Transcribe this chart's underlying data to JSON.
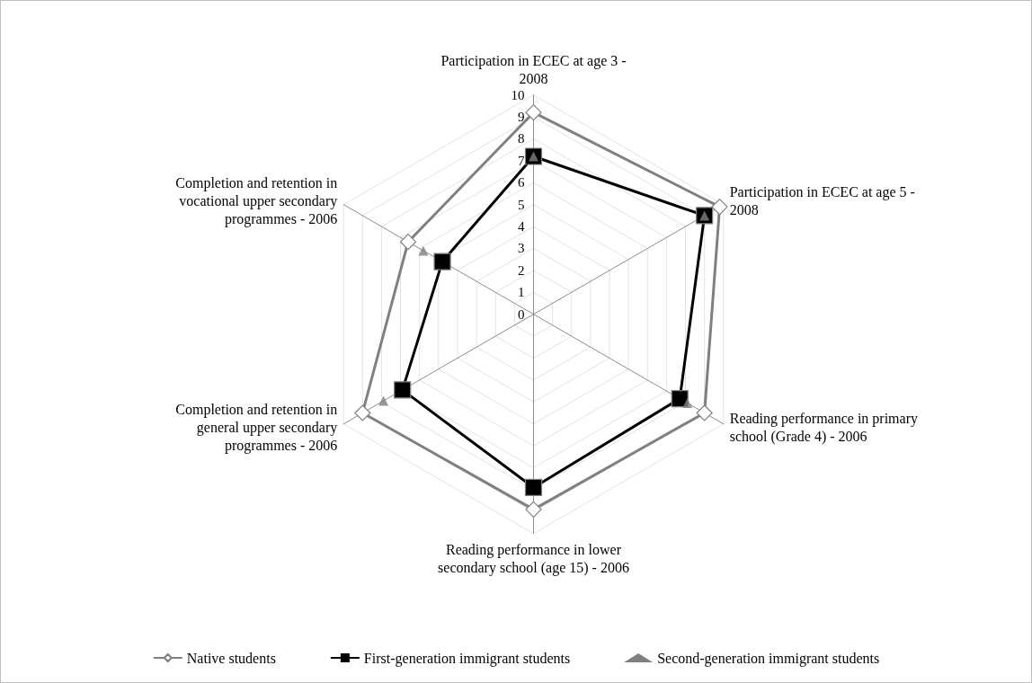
{
  "chart_data": {
    "type": "radar",
    "categories": [
      "Participation in ECEC at age 3 - 2008",
      "Participation in ECEC at age 5 - 2008",
      "Reading performance in primary school (Grade 4) - 2006",
      "Reading performance in lower secondary school (age 15) - 2006",
      "Completion and retention in general upper secondary programmes - 2006",
      "Completion and retention in vocational upper secondary programmes - 2006"
    ],
    "series": [
      {
        "name": "Native students",
        "color": "#808080",
        "marker": "diamond",
        "line_style": "solid",
        "values": [
          9.2,
          9.8,
          9.0,
          8.9,
          9.0,
          6.6
        ]
      },
      {
        "name": "First-generation immigrant students",
        "color": "#000000",
        "marker": "square",
        "line_style": "solid",
        "values": [
          7.2,
          9.0,
          7.7,
          7.9,
          6.9,
          4.8
        ]
      },
      {
        "name": "Second-generation immigrant students",
        "color": "#808080",
        "marker": "triangle",
        "line_style": "none",
        "values": [
          7.2,
          9.0,
          8.1,
          null,
          7.9,
          5.8
        ]
      }
    ],
    "ylim": [
      0,
      10
    ],
    "yticks": [
      0,
      1,
      2,
      3,
      4,
      5,
      6,
      7,
      8,
      9,
      10
    ],
    "grid": true,
    "legend": "bottom"
  }
}
